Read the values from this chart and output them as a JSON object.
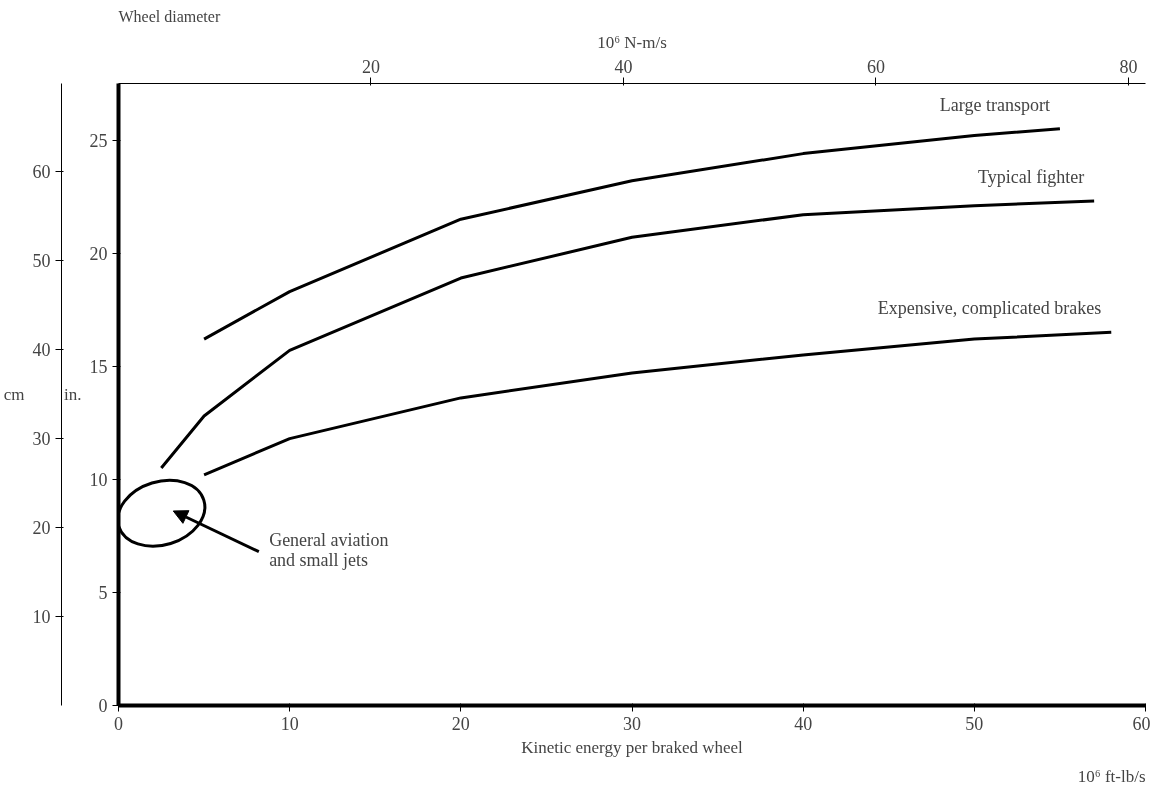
{
  "chart_data": {
    "type": "line",
    "title": "Wheel diameter",
    "xlabel": "Kinetic energy per braked wheel",
    "ylabel": "in.",
    "y2label": "cm",
    "x2label": "10⁶ N-m/s",
    "xlim": [
      0,
      60
    ],
    "xticks": [
      0,
      10,
      20,
      30,
      40,
      50,
      60
    ],
    "ylim": [
      0,
      27.5
    ],
    "yticks": [
      0,
      5,
      10,
      15,
      20,
      25
    ],
    "y2lim": [
      0,
      69.85
    ],
    "y2ticks": [
      10,
      20,
      30,
      40,
      50,
      60
    ],
    "x2lim": [
      0,
      81.35
    ],
    "x2ticks": [
      20,
      40,
      60,
      80
    ],
    "series": [
      {
        "name": "Large transport",
        "color": "#000000",
        "x": [
          5,
          10,
          20,
          30,
          40,
          50,
          55
        ],
        "values": [
          16.2,
          18.3,
          21.5,
          23.2,
          24.4,
          25.2,
          25.5
        ]
      },
      {
        "name": "Typical fighter",
        "color": "#000000",
        "x": [
          2.5,
          5,
          10,
          20,
          30,
          40,
          50,
          57
        ],
        "values": [
          10.5,
          12.8,
          15.7,
          18.9,
          20.7,
          21.7,
          22.1,
          22.3
        ]
      },
      {
        "name": "Expensive, complicated brakes",
        "color": "#000000",
        "x": [
          5,
          10,
          20,
          30,
          40,
          50,
          58
        ],
        "values": [
          10.2,
          11.8,
          13.6,
          14.7,
          15.5,
          16.2,
          16.5
        ]
      }
    ],
    "annotations": [
      "General aviation and small jets",
      "10⁶ ft-lb/s"
    ],
    "grid": false,
    "marker": "none",
    "line_style": "solid"
  }
}
